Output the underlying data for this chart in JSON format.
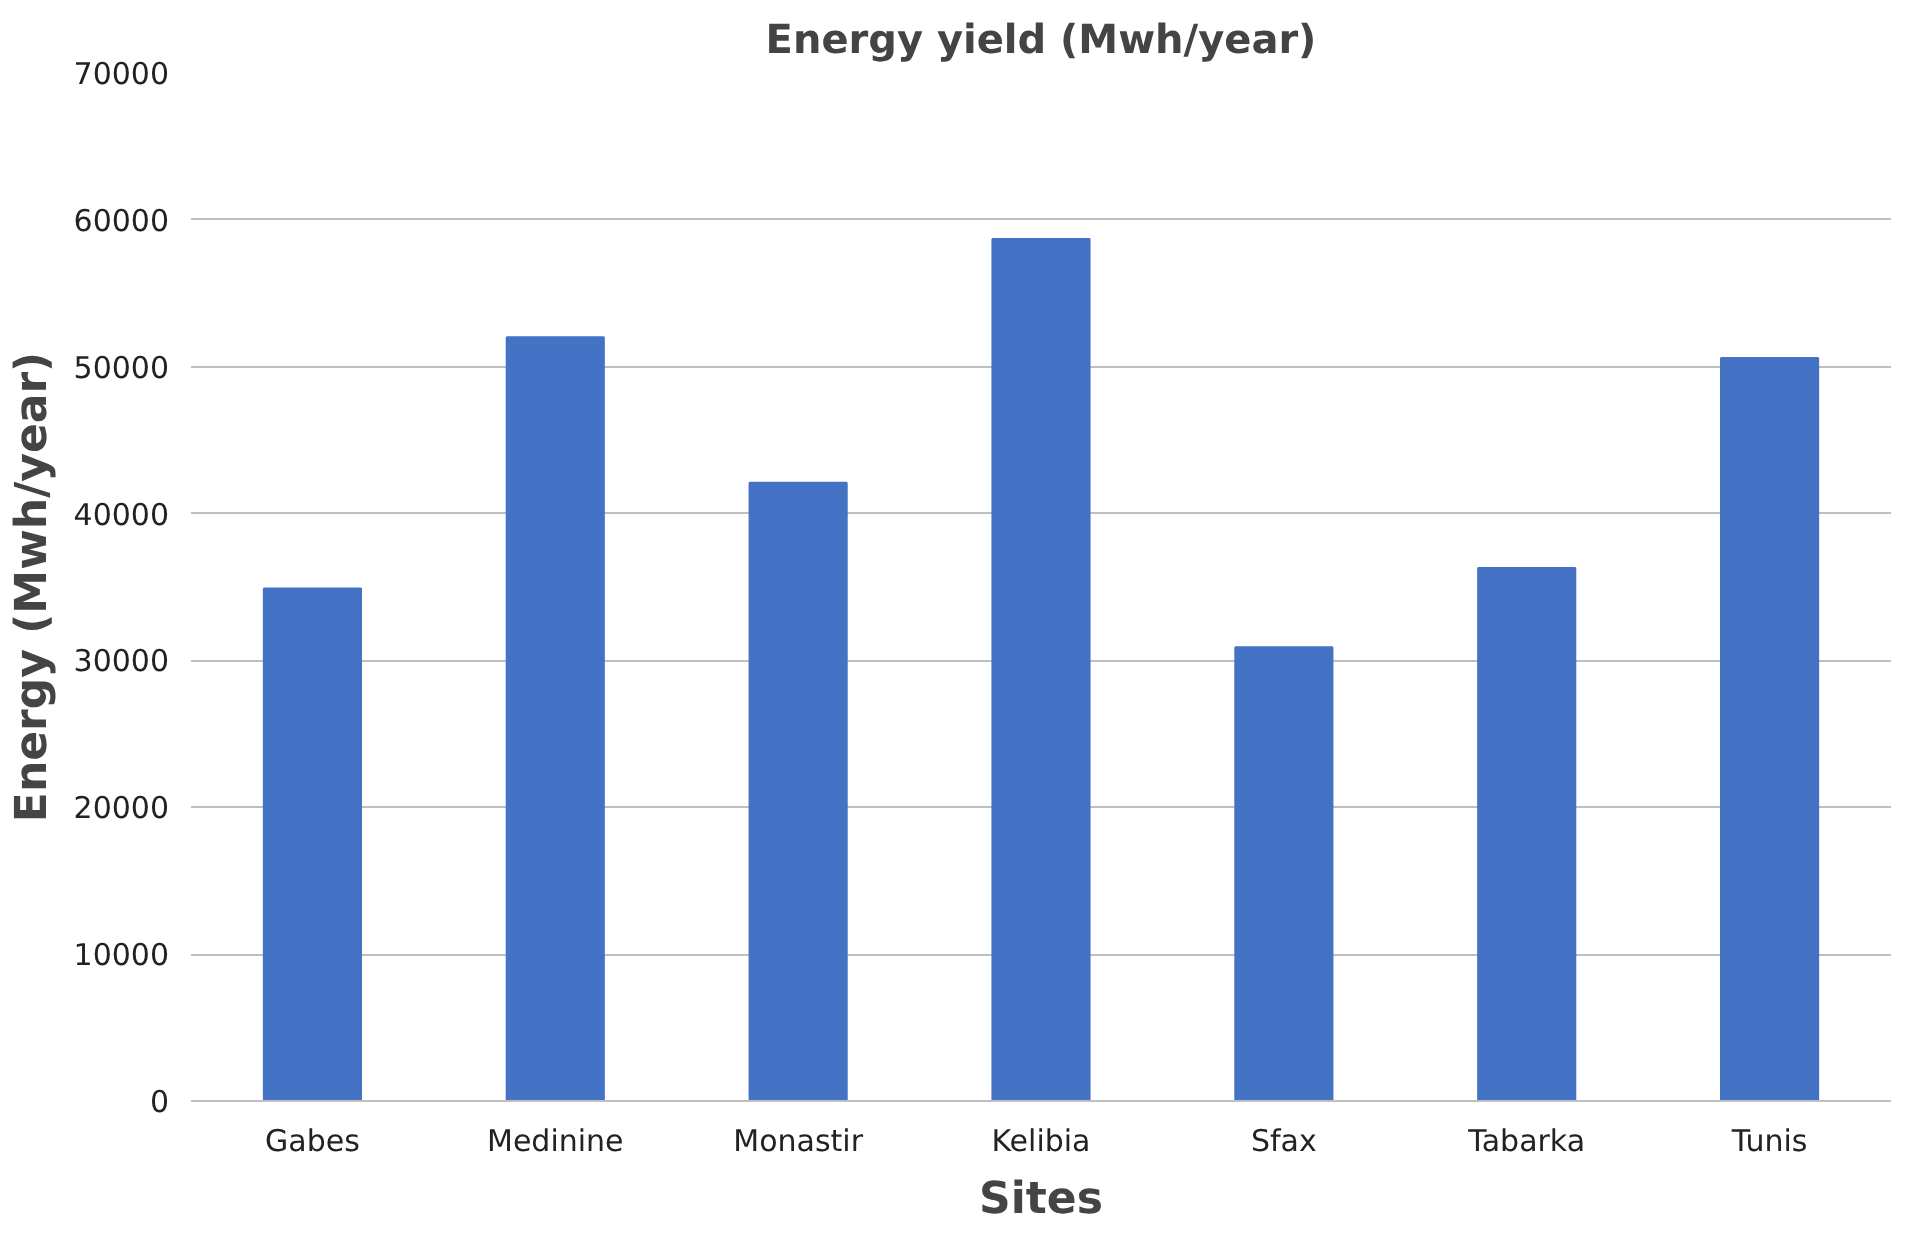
{
  "chart_data": {
    "type": "bar",
    "title": "Energy yield (Mwh/year)",
    "xlabel": "Sites",
    "ylabel": "Energy (Mwh/year)",
    "categories": [
      "Gabes",
      "Medinine",
      "Monastir",
      "Kelibia",
      "Sfax",
      "Tabarka",
      "Tunis"
    ],
    "values": [
      34900,
      52000,
      42100,
      58700,
      30900,
      36300,
      50600
    ],
    "color": "#4472c4",
    "ylim": [
      0,
      70000
    ],
    "yticks": [
      0,
      10000,
      20000,
      30000,
      40000,
      50000,
      60000,
      70000
    ],
    "grid": "y"
  }
}
